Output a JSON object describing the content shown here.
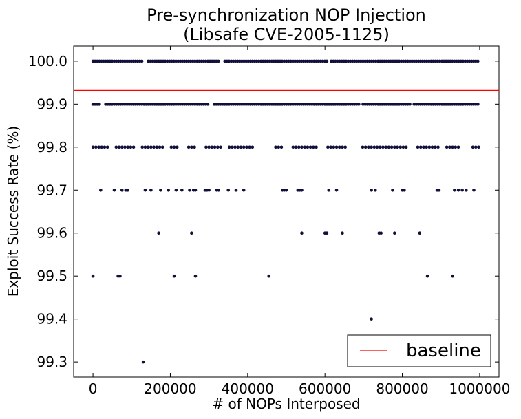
{
  "chart_data": {
    "type": "scatter",
    "title_line1": "Pre-synchronization NOP Injection",
    "title_line2": "(Libsafe CVE-2005-1125)",
    "xlabel": "# of NOPs Interposed",
    "ylabel": "Exploit Success Rate (%)",
    "xlim": [
      -50000,
      1050000
    ],
    "ylim": [
      99.265,
      100.035
    ],
    "xticks": [
      0,
      200000,
      400000,
      600000,
      800000,
      1000000
    ],
    "xtick_labels": [
      "0",
      "200000",
      "400000",
      "600000",
      "800000",
      "1000000"
    ],
    "yticks": [
      99.3,
      99.4,
      99.5,
      99.6,
      99.7,
      99.8,
      99.9,
      100.0
    ],
    "ytick_labels": [
      "99.3",
      "99.4",
      "99.5",
      "99.6",
      "99.7",
      "99.8",
      "99.9",
      "100.0"
    ],
    "grid": false,
    "legend_position": "lower-right",
    "colors": {
      "points": "#10103a",
      "baseline": "#ff0000"
    },
    "baseline": {
      "name": "baseline",
      "value": 99.932
    },
    "series": [
      {
        "name": "",
        "points": [
          [
            0,
            99.5
          ],
          [
            65000,
            99.5
          ],
          [
            70000,
            99.5
          ],
          [
            210000,
            99.5
          ],
          [
            265000,
            99.5
          ],
          [
            455000,
            99.5
          ],
          [
            865000,
            99.5
          ],
          [
            930000,
            99.5
          ],
          [
            720000,
            99.4
          ],
          [
            130000,
            99.3
          ],
          [
            170000,
            99.6
          ],
          [
            255000,
            99.6
          ],
          [
            540000,
            99.6
          ],
          [
            600000,
            99.6
          ],
          [
            605000,
            99.6
          ],
          [
            645000,
            99.6
          ],
          [
            740000,
            99.6
          ],
          [
            745000,
            99.6
          ],
          [
            780000,
            99.6
          ],
          [
            845000,
            99.6
          ],
          [
            20000,
            99.7
          ],
          [
            55000,
            99.7
          ],
          [
            75000,
            99.7
          ],
          [
            85000,
            99.7
          ],
          [
            90000,
            99.7
          ],
          [
            135000,
            99.7
          ],
          [
            150000,
            99.7
          ],
          [
            175000,
            99.7
          ],
          [
            195000,
            99.7
          ],
          [
            215000,
            99.7
          ],
          [
            230000,
            99.7
          ],
          [
            250000,
            99.7
          ],
          [
            260000,
            99.7
          ],
          [
            265000,
            99.7
          ],
          [
            290000,
            99.7
          ],
          [
            295000,
            99.7
          ],
          [
            300000,
            99.7
          ],
          [
            320000,
            99.7
          ],
          [
            325000,
            99.7
          ],
          [
            350000,
            99.7
          ],
          [
            370000,
            99.7
          ],
          [
            390000,
            99.7
          ],
          [
            490000,
            99.7
          ],
          [
            495000,
            99.7
          ],
          [
            500000,
            99.7
          ],
          [
            530000,
            99.7
          ],
          [
            535000,
            99.7
          ],
          [
            540000,
            99.7
          ],
          [
            610000,
            99.7
          ],
          [
            630000,
            99.7
          ],
          [
            720000,
            99.7
          ],
          [
            730000,
            99.7
          ],
          [
            775000,
            99.7
          ],
          [
            800000,
            99.7
          ],
          [
            805000,
            99.7
          ],
          [
            890000,
            99.7
          ],
          [
            895000,
            99.7
          ],
          [
            935000,
            99.7
          ],
          [
            945000,
            99.7
          ],
          [
            955000,
            99.7
          ],
          [
            965000,
            99.7
          ],
          [
            985000,
            99.7
          ]
        ],
        "row_ranges": [
          {
            "y": 100.0,
            "x_start": 0,
            "x_end": 1000000,
            "step": 5500,
            "gaps": [
              [
                130000,
                140000
              ],
              [
                330000,
                340000
              ],
              [
                610000,
                615000
              ]
            ]
          },
          {
            "y": 99.9,
            "x_start": 0,
            "x_end": 1000000,
            "step": 5500,
            "gaps": [
              [
                20000,
                30000
              ],
              [
                300000,
                308000
              ],
              [
                690000,
                696000
              ],
              [
                820000,
                826000
              ]
            ]
          },
          {
            "y": 99.8,
            "x_start": 0,
            "x_end": 1000000,
            "step": 7500,
            "gaps": [
              [
                40000,
                55000
              ],
              [
                110000,
                125000
              ],
              [
                185000,
                200000
              ],
              [
                225000,
                240000
              ],
              [
                270000,
                285000
              ],
              [
                335000,
                350000
              ],
              [
                415000,
                470000
              ],
              [
                495000,
                510000
              ],
              [
                580000,
                600000
              ],
              [
                660000,
                690000
              ],
              [
                815000,
                835000
              ],
              [
                900000,
                910000
              ],
              [
                950000,
                980000
              ]
            ]
          }
        ]
      }
    ]
  }
}
